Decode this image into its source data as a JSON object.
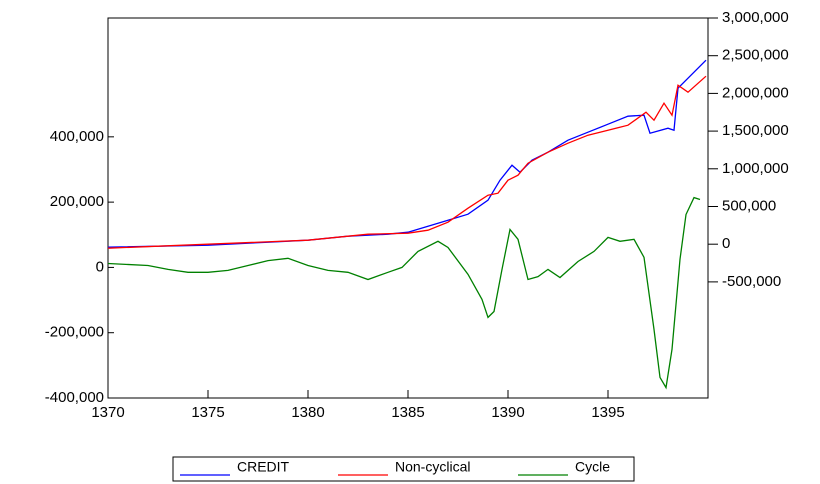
{
  "chart_data": {
    "type": "line",
    "xlim": [
      1370,
      1400
    ],
    "xticks": [
      1370,
      1375,
      1380,
      1385,
      1390,
      1395
    ],
    "ylim": [
      -400000,
      764000
    ],
    "yticks": [
      {
        "value": -400000,
        "label": "-400,000"
      },
      {
        "value": -200000,
        "label": "-200,000"
      },
      0,
      {
        "value": 200000,
        "label": "200,000"
      },
      {
        "value": 400000,
        "label": "400,000"
      }
    ],
    "y2lim": [
      -2040000,
      3000000
    ],
    "y2ticks": [
      {
        "value": -500000,
        "label": "-500,000"
      },
      0,
      {
        "value": 500000,
        "label": "500,000"
      },
      {
        "value": 1000000,
        "label": "1,000,000"
      },
      {
        "value": 1500000,
        "label": "1,500,000"
      },
      {
        "value": 2000000,
        "label": "2,000,000"
      },
      {
        "value": 2500000,
        "label": "2,500,000"
      },
      {
        "value": 3000000,
        "label": "3,000,000"
      }
    ],
    "legend": "bottom",
    "series": [
      {
        "name": "CREDIT",
        "color": "#0000ff",
        "axis": "y2",
        "x": [
          1370,
          1375,
          1378,
          1380,
          1382,
          1384,
          1385,
          1386,
          1387,
          1388,
          1389,
          1389.6,
          1390.2,
          1390.6,
          1391.2,
          1392,
          1393,
          1394,
          1395,
          1396,
          1396.8,
          1397.1,
          1398,
          1398.3,
          1398.5,
          1399,
          1399.9
        ],
        "values": [
          -40000,
          -13000,
          27000,
          53000,
          106000,
          133000,
          159000,
          239000,
          318000,
          398000,
          584000,
          849000,
          1048000,
          955000,
          1114000,
          1220000,
          1379000,
          1485000,
          1592000,
          1698000,
          1711000,
          1472000,
          1539000,
          1512000,
          2069000,
          2202000,
          2440000
        ]
      },
      {
        "name": "Non-cyclical",
        "color": "#ff0000",
        "axis": "y2",
        "x": [
          1370,
          1375,
          1380,
          1383,
          1385,
          1386,
          1387,
          1388,
          1389,
          1389.5,
          1390,
          1390.5,
          1391,
          1392,
          1393,
          1394,
          1395,
          1396,
          1396.9,
          1397.3,
          1397.8,
          1398.2,
          1398.5,
          1399,
          1399.9
        ],
        "values": [
          -53000,
          0,
          53000,
          133000,
          146000,
          186000,
          292000,
          477000,
          650000,
          676000,
          849000,
          915000,
          1074000,
          1220000,
          1340000,
          1446000,
          1512000,
          1578000,
          1751000,
          1645000,
          1870000,
          1711000,
          2109000,
          2016000,
          2228000
        ]
      },
      {
        "name": "Cycle",
        "color": "#008000",
        "x": [
          1370,
          1372,
          1373,
          1374,
          1375,
          1376,
          1377,
          1378,
          1379,
          1380,
          1381,
          1382,
          1383,
          1384,
          1384.7,
          1385.5,
          1386.5,
          1387,
          1388,
          1388.7,
          1389,
          1389.3,
          1389.7,
          1390.1,
          1390.5,
          1391,
          1391.5,
          1392,
          1392.6,
          1393.5,
          1394.3,
          1395,
          1395.6,
          1396.3,
          1396.8,
          1397.3,
          1397.6,
          1397.9,
          1398.2,
          1398.6,
          1398.9,
          1399.3,
          1399.6
        ],
        "values": [
          12000,
          6000,
          -6000,
          -15000,
          -15000,
          -9000,
          6000,
          21000,
          28000,
          6000,
          -9000,
          -15000,
          -37000,
          -15000,
          0,
          49000,
          80000,
          61000,
          -21000,
          -98000,
          -153000,
          -135000,
          -6000,
          116000,
          86000,
          -37000,
          -28000,
          -6000,
          -31000,
          18000,
          49000,
          92000,
          80000,
          86000,
          31000,
          -190000,
          -337000,
          -368000,
          -251000,
          25000,
          162000,
          214000,
          208000
        ]
      }
    ]
  }
}
